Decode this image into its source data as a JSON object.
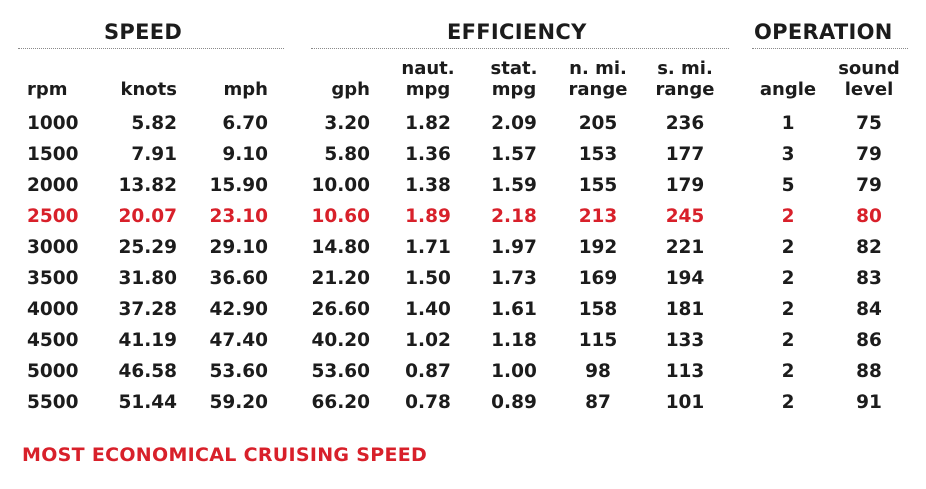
{
  "groups": [
    {
      "label": "SPEED"
    },
    {
      "label": "EFFICIENCY"
    },
    {
      "label": "OPERATION"
    }
  ],
  "columns": [
    {
      "label": "rpm"
    },
    {
      "label": "knots"
    },
    {
      "label": "mph"
    },
    {
      "label": "gph"
    },
    {
      "label": "naut.\nmpg"
    },
    {
      "label": "stat.\nmpg"
    },
    {
      "label": "n. mi.\nrange"
    },
    {
      "label": "s. mi.\nrange"
    },
    {
      "label": "angle"
    },
    {
      "label": "sound\nlevel"
    }
  ],
  "rows": [
    {
      "cells": [
        "1000",
        "5.82",
        "6.70",
        "3.20",
        "1.82",
        "2.09",
        "205",
        "236",
        "1",
        "75"
      ]
    },
    {
      "cells": [
        "1500",
        "7.91",
        "9.10",
        "5.80",
        "1.36",
        "1.57",
        "153",
        "177",
        "3",
        "79"
      ]
    },
    {
      "cells": [
        "2000",
        "13.82",
        "15.90",
        "10.00",
        "1.38",
        "1.59",
        "155",
        "179",
        "5",
        "79"
      ]
    },
    {
      "cells": [
        "2500",
        "20.07",
        "23.10",
        "10.60",
        "1.89",
        "2.18",
        "213",
        "245",
        "2",
        "80"
      ],
      "highlight": true
    },
    {
      "cells": [
        "3000",
        "25.29",
        "29.10",
        "14.80",
        "1.71",
        "1.97",
        "192",
        "221",
        "2",
        "82"
      ]
    },
    {
      "cells": [
        "3500",
        "31.80",
        "36.60",
        "21.20",
        "1.50",
        "1.73",
        "169",
        "194",
        "2",
        "83"
      ]
    },
    {
      "cells": [
        "4000",
        "37.28",
        "42.90",
        "26.60",
        "1.40",
        "1.61",
        "158",
        "181",
        "2",
        "84"
      ]
    },
    {
      "cells": [
        "4500",
        "41.19",
        "47.40",
        "40.20",
        "1.02",
        "1.18",
        "115",
        "133",
        "2",
        "86"
      ]
    },
    {
      "cells": [
        "5000",
        "46.58",
        "53.60",
        "53.60",
        "0.87",
        "1.00",
        "98",
        "113",
        "2",
        "88"
      ]
    },
    {
      "cells": [
        "5500",
        "51.44",
        "59.20",
        "66.20",
        "0.78",
        "0.89",
        "87",
        "101",
        "2",
        "91"
      ]
    }
  ],
  "legend": {
    "text": "MOST ECONOMICAL CRUISING SPEED"
  },
  "colors": {
    "highlight": "#d8202a",
    "band": "#deece7",
    "text": "#1c1c1c"
  }
}
